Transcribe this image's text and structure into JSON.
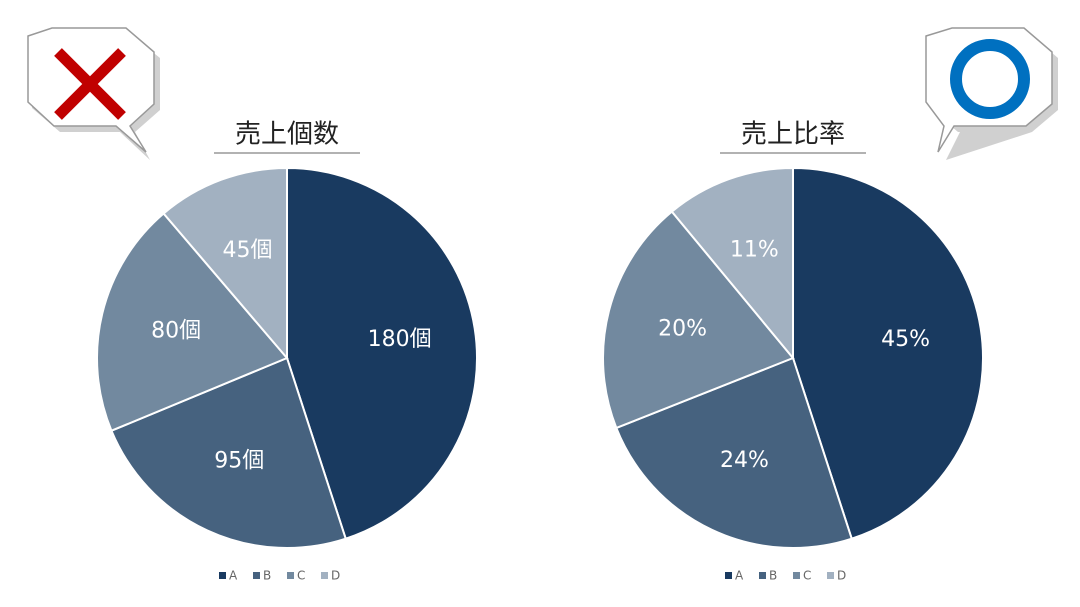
{
  "chart_data": [
    {
      "type": "pie",
      "title": "売上個数",
      "categories": [
        "A",
        "B",
        "C",
        "D"
      ],
      "values": [
        180,
        95,
        80,
        45
      ],
      "value_labels": [
        "180個",
        "95個",
        "80個",
        "45個"
      ],
      "colors": [
        "#193a60",
        "#46627f",
        "#72899f",
        "#a2b1c1"
      ],
      "legend": "bottom"
    },
    {
      "type": "pie",
      "title": "売上比率",
      "categories": [
        "A",
        "B",
        "C",
        "D"
      ],
      "values": [
        45,
        24,
        20,
        11
      ],
      "value_labels": [
        "45%",
        "24%",
        "20%",
        "11%"
      ],
      "colors": [
        "#193a60",
        "#46627f",
        "#72899f",
        "#a2b1c1"
      ],
      "legend": "bottom"
    }
  ]
}
